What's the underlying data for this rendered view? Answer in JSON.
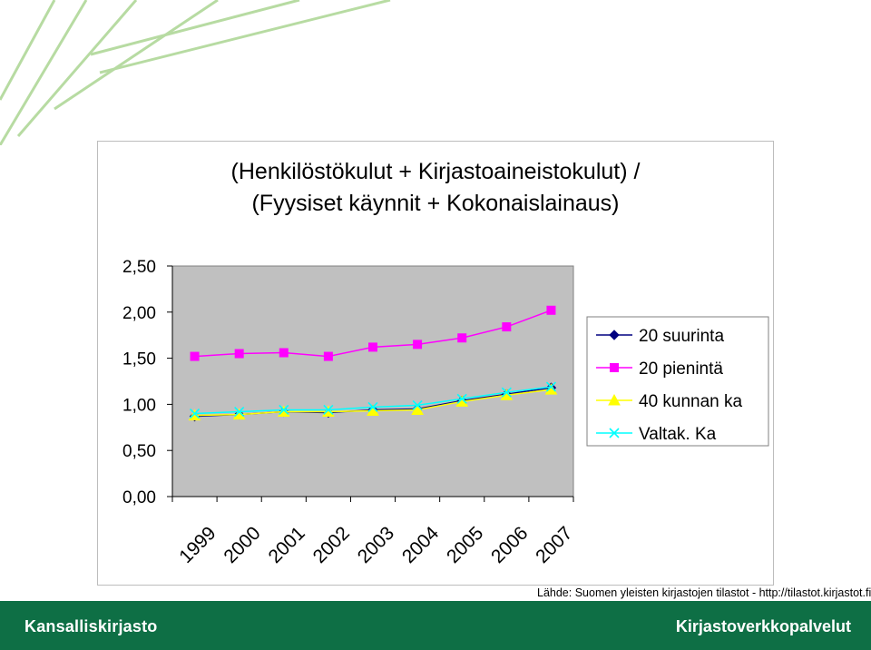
{
  "colors": {
    "plot_bg": "#c0c0c0",
    "footer_bg": "#0e6f45",
    "decor_line": "#a6d38c"
  },
  "footer": {
    "left_label": "Kansalliskirjasto",
    "right_label": "Kirjastoverkkopalvelut"
  },
  "source_note": "Lähde: Suomen yleisten kirjastojen tilastot - http://tilastot.kirjastot.fi/",
  "chart_data": {
    "type": "line",
    "title_lines": [
      "(Henkilöstökulut + Kirjastoaineistokulut) /",
      "(Fyysiset käynnit + Kokonaislainaus)"
    ],
    "categories": [
      "1999",
      "2000",
      "2001",
      "2002",
      "2003",
      "2004",
      "2005",
      "2006",
      "2007"
    ],
    "y_ticks": [
      "0,00",
      "0,50",
      "1,00",
      "1,50",
      "2,00",
      "2,50"
    ],
    "ylim": [
      0,
      2.5
    ],
    "grid": false,
    "legend_position": "right",
    "series": [
      {
        "name": "20 suurinta",
        "color": "#000080",
        "marker": "diamond",
        "values": [
          0.87,
          0.89,
          0.92,
          0.91,
          0.94,
          0.95,
          1.04,
          1.11,
          1.18
        ]
      },
      {
        "name": "20 pienintä",
        "color": "#ff00ff",
        "marker": "square",
        "values": [
          1.52,
          1.55,
          1.56,
          1.52,
          1.62,
          1.65,
          1.72,
          1.84,
          2.02
        ]
      },
      {
        "name": "40 kunnan ka",
        "color": "#ffff00",
        "marker": "triangle",
        "values": [
          0.88,
          0.89,
          0.92,
          0.92,
          0.93,
          0.94,
          1.03,
          1.1,
          1.16
        ]
      },
      {
        "name": "Valtak. Ka",
        "color": "#00ffff",
        "marker": "x",
        "values": [
          0.9,
          0.92,
          0.94,
          0.94,
          0.97,
          0.99,
          1.06,
          1.13,
          1.19
        ]
      }
    ]
  }
}
